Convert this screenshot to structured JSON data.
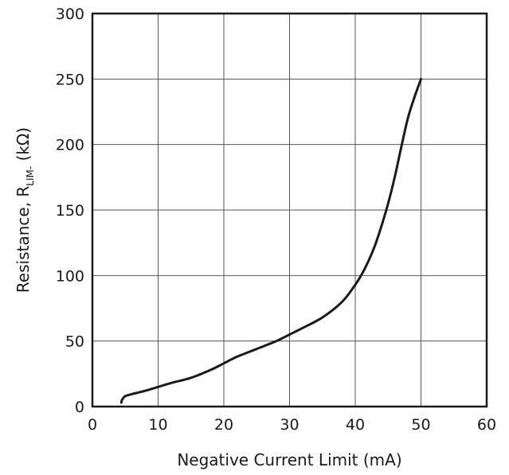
{
  "chart_data": {
    "type": "line",
    "title": "",
    "xlabel": "Negative Current Limit (mA)",
    "ylabel_main": "Resistance, R",
    "ylabel_sub": "LIM-",
    "ylabel_unit": " (kΩ)",
    "xlim": [
      0,
      60
    ],
    "ylim": [
      0,
      300
    ],
    "xticks": [
      0,
      10,
      20,
      30,
      40,
      50,
      60
    ],
    "yticks": [
      0,
      50,
      100,
      150,
      200,
      250,
      300
    ],
    "xtick_labels": [
      "0",
      "10",
      "20",
      "30",
      "40",
      "50",
      "60"
    ],
    "ytick_labels": [
      "0",
      "50",
      "100",
      "150",
      "200",
      "250",
      "300"
    ],
    "grid": true,
    "line_color": "#1a1a1a",
    "series": [
      {
        "x": [
          4.4,
          4.5,
          4.7,
          5,
          6,
          8,
          10,
          12,
          15,
          18,
          20,
          22,
          25,
          28,
          30,
          32,
          35,
          38,
          40,
          41,
          42,
          43,
          44,
          45,
          46,
          47,
          48,
          49,
          50
        ],
        "y": [
          3,
          5,
          6.5,
          8,
          9.5,
          12,
          15,
          18,
          22,
          28,
          33,
          38,
          44,
          50,
          55,
          60,
          68,
          80,
          93,
          101,
          111,
          123,
          138,
          155,
          175,
          198,
          220,
          236,
          250
        ]
      }
    ]
  }
}
